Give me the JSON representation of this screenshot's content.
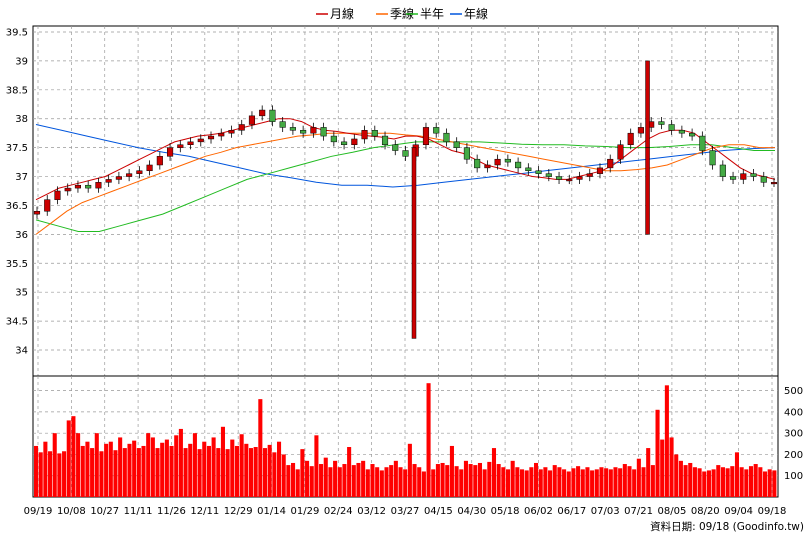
{
  "legend": [
    {
      "label": "月線",
      "color": "#cc0000"
    },
    {
      "label": "季線",
      "color": "#ff6600"
    },
    {
      "label": "半年",
      "color": "#22bb22"
    },
    {
      "label": "年線",
      "color": "#0055dd"
    }
  ],
  "footer": "資料日期: 09/18  (Goodinfo.tw)",
  "colors": {
    "up": "#ff0000",
    "down": "#cc0000",
    "up_body": "#44aa44",
    "wick": "#000000",
    "volume": "#ff0000",
    "grid": "#999999"
  },
  "chart_data": [
    {
      "type": "candlestick",
      "title": "",
      "ylim": [
        34,
        39.5
      ],
      "y_ticks": [
        "39.5",
        "39",
        "38.5",
        "38",
        "37.5",
        "37",
        "36.5",
        "36",
        "35.5",
        "35",
        "34.5",
        "34"
      ],
      "x_labels": [
        "09/19",
        "10/08",
        "10/27",
        "11/11",
        "11/26",
        "12/11",
        "12/29",
        "01/14",
        "01/29",
        "02/24",
        "03/12",
        "03/27",
        "04/15",
        "04/30",
        "05/18",
        "06/02",
        "06/17",
        "07/03",
        "07/21",
        "08/05",
        "08/20",
        "09/04",
        "09/18"
      ],
      "grid": true,
      "legend_position": "top-center",
      "price_close": [
        36.4,
        36.6,
        36.75,
        36.8,
        36.85,
        36.8,
        36.9,
        36.95,
        37.0,
        37.05,
        37.1,
        37.2,
        37.35,
        37.5,
        37.55,
        37.6,
        37.65,
        37.7,
        37.75,
        37.8,
        37.9,
        38.05,
        38.15,
        37.95,
        37.85,
        37.8,
        37.75,
        37.85,
        37.7,
        37.6,
        37.55,
        37.65,
        37.8,
        37.7,
        37.55,
        37.45,
        37.35,
        37.55,
        37.85,
        37.75,
        37.6,
        37.5,
        37.3,
        37.15,
        37.2,
        37.3,
        37.25,
        37.15,
        37.1,
        37.05,
        37.0,
        36.95,
        36.95,
        37.0,
        37.05,
        37.15,
        37.3,
        37.55,
        37.75,
        37.85,
        37.95,
        37.9,
        37.8,
        37.75,
        37.7,
        37.45,
        37.2,
        37.0,
        36.95,
        37.05,
        37.0,
        36.9,
        36.9
      ],
      "ma_month": [
        36.6,
        36.7,
        36.8,
        36.85,
        36.9,
        36.95,
        37.0,
        37.1,
        37.2,
        37.3,
        37.4,
        37.5,
        37.6,
        37.65,
        37.7,
        37.72,
        37.75,
        37.8,
        37.85,
        37.9,
        37.95,
        38.0,
        38.0,
        37.95,
        37.85,
        37.8,
        37.78,
        37.75,
        37.72,
        37.7,
        37.68,
        37.65,
        37.7,
        37.7,
        37.65,
        37.55,
        37.45,
        37.4,
        37.3,
        37.2,
        37.15,
        37.1,
        37.05,
        37.0,
        36.98,
        36.95,
        36.95,
        37.0,
        37.05,
        37.1,
        37.2,
        37.35,
        37.5,
        37.65,
        37.75,
        37.8,
        37.8,
        37.75,
        37.6,
        37.45,
        37.3,
        37.15,
        37.05,
        37.0,
        36.95
      ],
      "ma_quarter": [
        36.0,
        36.2,
        36.4,
        36.55,
        36.65,
        36.75,
        36.85,
        36.95,
        37.05,
        37.15,
        37.25,
        37.35,
        37.42,
        37.5,
        37.55,
        37.6,
        37.65,
        37.7,
        37.72,
        37.75,
        37.75,
        37.75,
        37.75,
        37.75,
        37.72,
        37.7,
        37.65,
        37.6,
        37.55,
        37.5,
        37.45,
        37.4,
        37.35,
        37.3,
        37.25,
        37.2,
        37.15,
        37.1,
        37.1,
        37.12,
        37.15,
        37.2,
        37.3,
        37.4,
        37.5,
        37.55,
        37.55,
        37.5,
        37.5
      ],
      "ma_half": [
        36.25,
        36.15,
        36.05,
        36.05,
        36.15,
        36.25,
        36.35,
        36.5,
        36.65,
        36.8,
        36.95,
        37.05,
        37.15,
        37.25,
        37.35,
        37.42,
        37.5,
        37.55,
        37.6,
        37.6,
        37.6,
        37.6,
        37.58,
        37.56,
        37.55,
        37.55,
        37.53,
        37.52,
        37.5,
        37.5,
        37.52,
        37.55,
        37.55,
        37.5,
        37.45,
        37.45
      ],
      "ma_year": [
        37.9,
        37.8,
        37.7,
        37.6,
        37.5,
        37.42,
        37.35,
        37.25,
        37.15,
        37.05,
        36.98,
        36.9,
        36.85,
        36.85,
        36.82,
        36.85,
        36.9,
        36.95,
        37.0,
        37.05,
        37.1,
        37.15,
        37.2,
        37.25,
        37.3,
        37.35,
        37.4,
        37.45,
        37.48,
        37.5
      ],
      "long_wicks": [
        {
          "x_label": "03/27",
          "low": 34.2
        },
        {
          "x_label": "07/21",
          "high": 39.0
        },
        {
          "x_label": "07/21",
          "low": 36.0
        }
      ]
    },
    {
      "type": "bar",
      "title": "",
      "ylim": [
        0,
        550
      ],
      "y_ticks": [
        "500",
        "400",
        "300",
        "200",
        "100"
      ],
      "grid": true,
      "values": [
        240,
        210,
        260,
        215,
        300,
        205,
        215,
        360,
        380,
        300,
        240,
        260,
        230,
        300,
        215,
        250,
        260,
        220,
        280,
        230,
        250,
        265,
        230,
        240,
        300,
        280,
        230,
        255,
        270,
        240,
        290,
        320,
        230,
        250,
        300,
        225,
        260,
        240,
        280,
        230,
        330,
        225,
        270,
        240,
        295,
        250,
        230,
        235,
        460,
        230,
        245,
        210,
        260,
        200,
        150,
        160,
        130,
        225,
        170,
        145,
        290,
        155,
        185,
        140,
        170,
        140,
        155,
        235,
        150,
        160,
        170,
        130,
        155,
        140,
        125,
        140,
        150,
        170,
        140,
        130,
        250,
        155,
        140,
        120,
        535,
        130,
        155,
        160,
        150,
        240,
        145,
        130,
        170,
        155,
        150,
        160,
        130,
        165,
        230,
        155,
        140,
        130,
        170,
        140,
        130,
        125,
        140,
        160,
        130,
        140,
        125,
        150,
        140,
        130,
        120,
        135,
        145,
        130,
        140,
        125,
        130,
        140,
        135,
        130,
        140,
        135,
        155,
        145,
        130,
        180,
        140,
        230,
        150,
        410,
        270,
        525,
        280,
        200,
        170,
        150,
        160,
        140,
        135,
        120,
        125,
        130,
        150,
        140,
        135,
        145,
        210,
        140,
        130,
        145,
        155,
        140,
        120,
        130,
        125
      ]
    }
  ]
}
